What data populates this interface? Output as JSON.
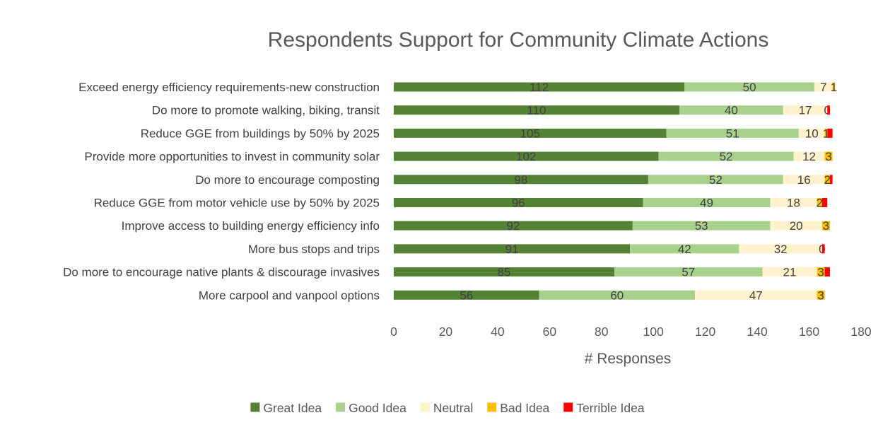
{
  "chart_data": {
    "type": "bar",
    "orientation": "horizontal",
    "stacked": true,
    "title": "Respondents Support for Community Climate Actions",
    "xlabel": "# Responses",
    "ylabel": "",
    "xlim": [
      0,
      180
    ],
    "xticks": [
      0,
      20,
      40,
      60,
      80,
      100,
      120,
      140,
      160,
      180
    ],
    "grid": false,
    "legend": "bottom",
    "categories": [
      "Exceed energy efficiency requirements-new construction",
      "Do more to promote walking, biking, transit",
      "Reduce GGE from buildings by 50% by 2025",
      "Provide more opportunities to invest in community solar",
      "Do more to encourage composting",
      "Reduce GGE from motor vehicle use by 50% by 2025",
      "Improve access to building energy efficiency info",
      "More bus stops and trips",
      "Do more to encourage native plants & discourage invasives",
      "More carpool and vanpool options"
    ],
    "series": [
      {
        "name": "Great Idea",
        "color": "#548235",
        "values": [
          112,
          110,
          105,
          102,
          98,
          96,
          92,
          91,
          85,
          56
        ]
      },
      {
        "name": "Good Idea",
        "color": "#A9D18E",
        "values": [
          50,
          40,
          51,
          52,
          52,
          49,
          53,
          42,
          57,
          60
        ]
      },
      {
        "name": "Neutral",
        "color": "#FFF2CC",
        "values": [
          7,
          17,
          10,
          12,
          16,
          18,
          20,
          32,
          21,
          47
        ]
      },
      {
        "name": "Bad Idea",
        "color": "#FFC000",
        "values": [
          1,
          0,
          1,
          3,
          2,
          2,
          3,
          0,
          3,
          3
        ]
      },
      {
        "name": "Terrible Idea",
        "color": "#FF0000",
        "values": [
          0,
          1,
          2,
          0,
          1,
          2,
          0,
          1,
          2,
          0
        ]
      }
    ],
    "data_labels": [
      [
        "112",
        "110",
        "105",
        "102",
        "98",
        "96",
        "92",
        "91",
        "85",
        "56"
      ],
      [
        "50",
        "40",
        "51",
        "52",
        "52",
        "49",
        "53",
        "42",
        "57",
        "60"
      ],
      [
        "7",
        "17",
        "10",
        "12",
        "16",
        "18",
        "20",
        "32",
        "21",
        "47"
      ],
      [
        "1",
        "0",
        "1",
        "3",
        "2",
        "2",
        "3",
        "0",
        "3",
        "3"
      ],
      [
        "",
        "",
        "",
        "",
        "",
        "",
        "",
        "",
        "",
        ""
      ]
    ]
  }
}
